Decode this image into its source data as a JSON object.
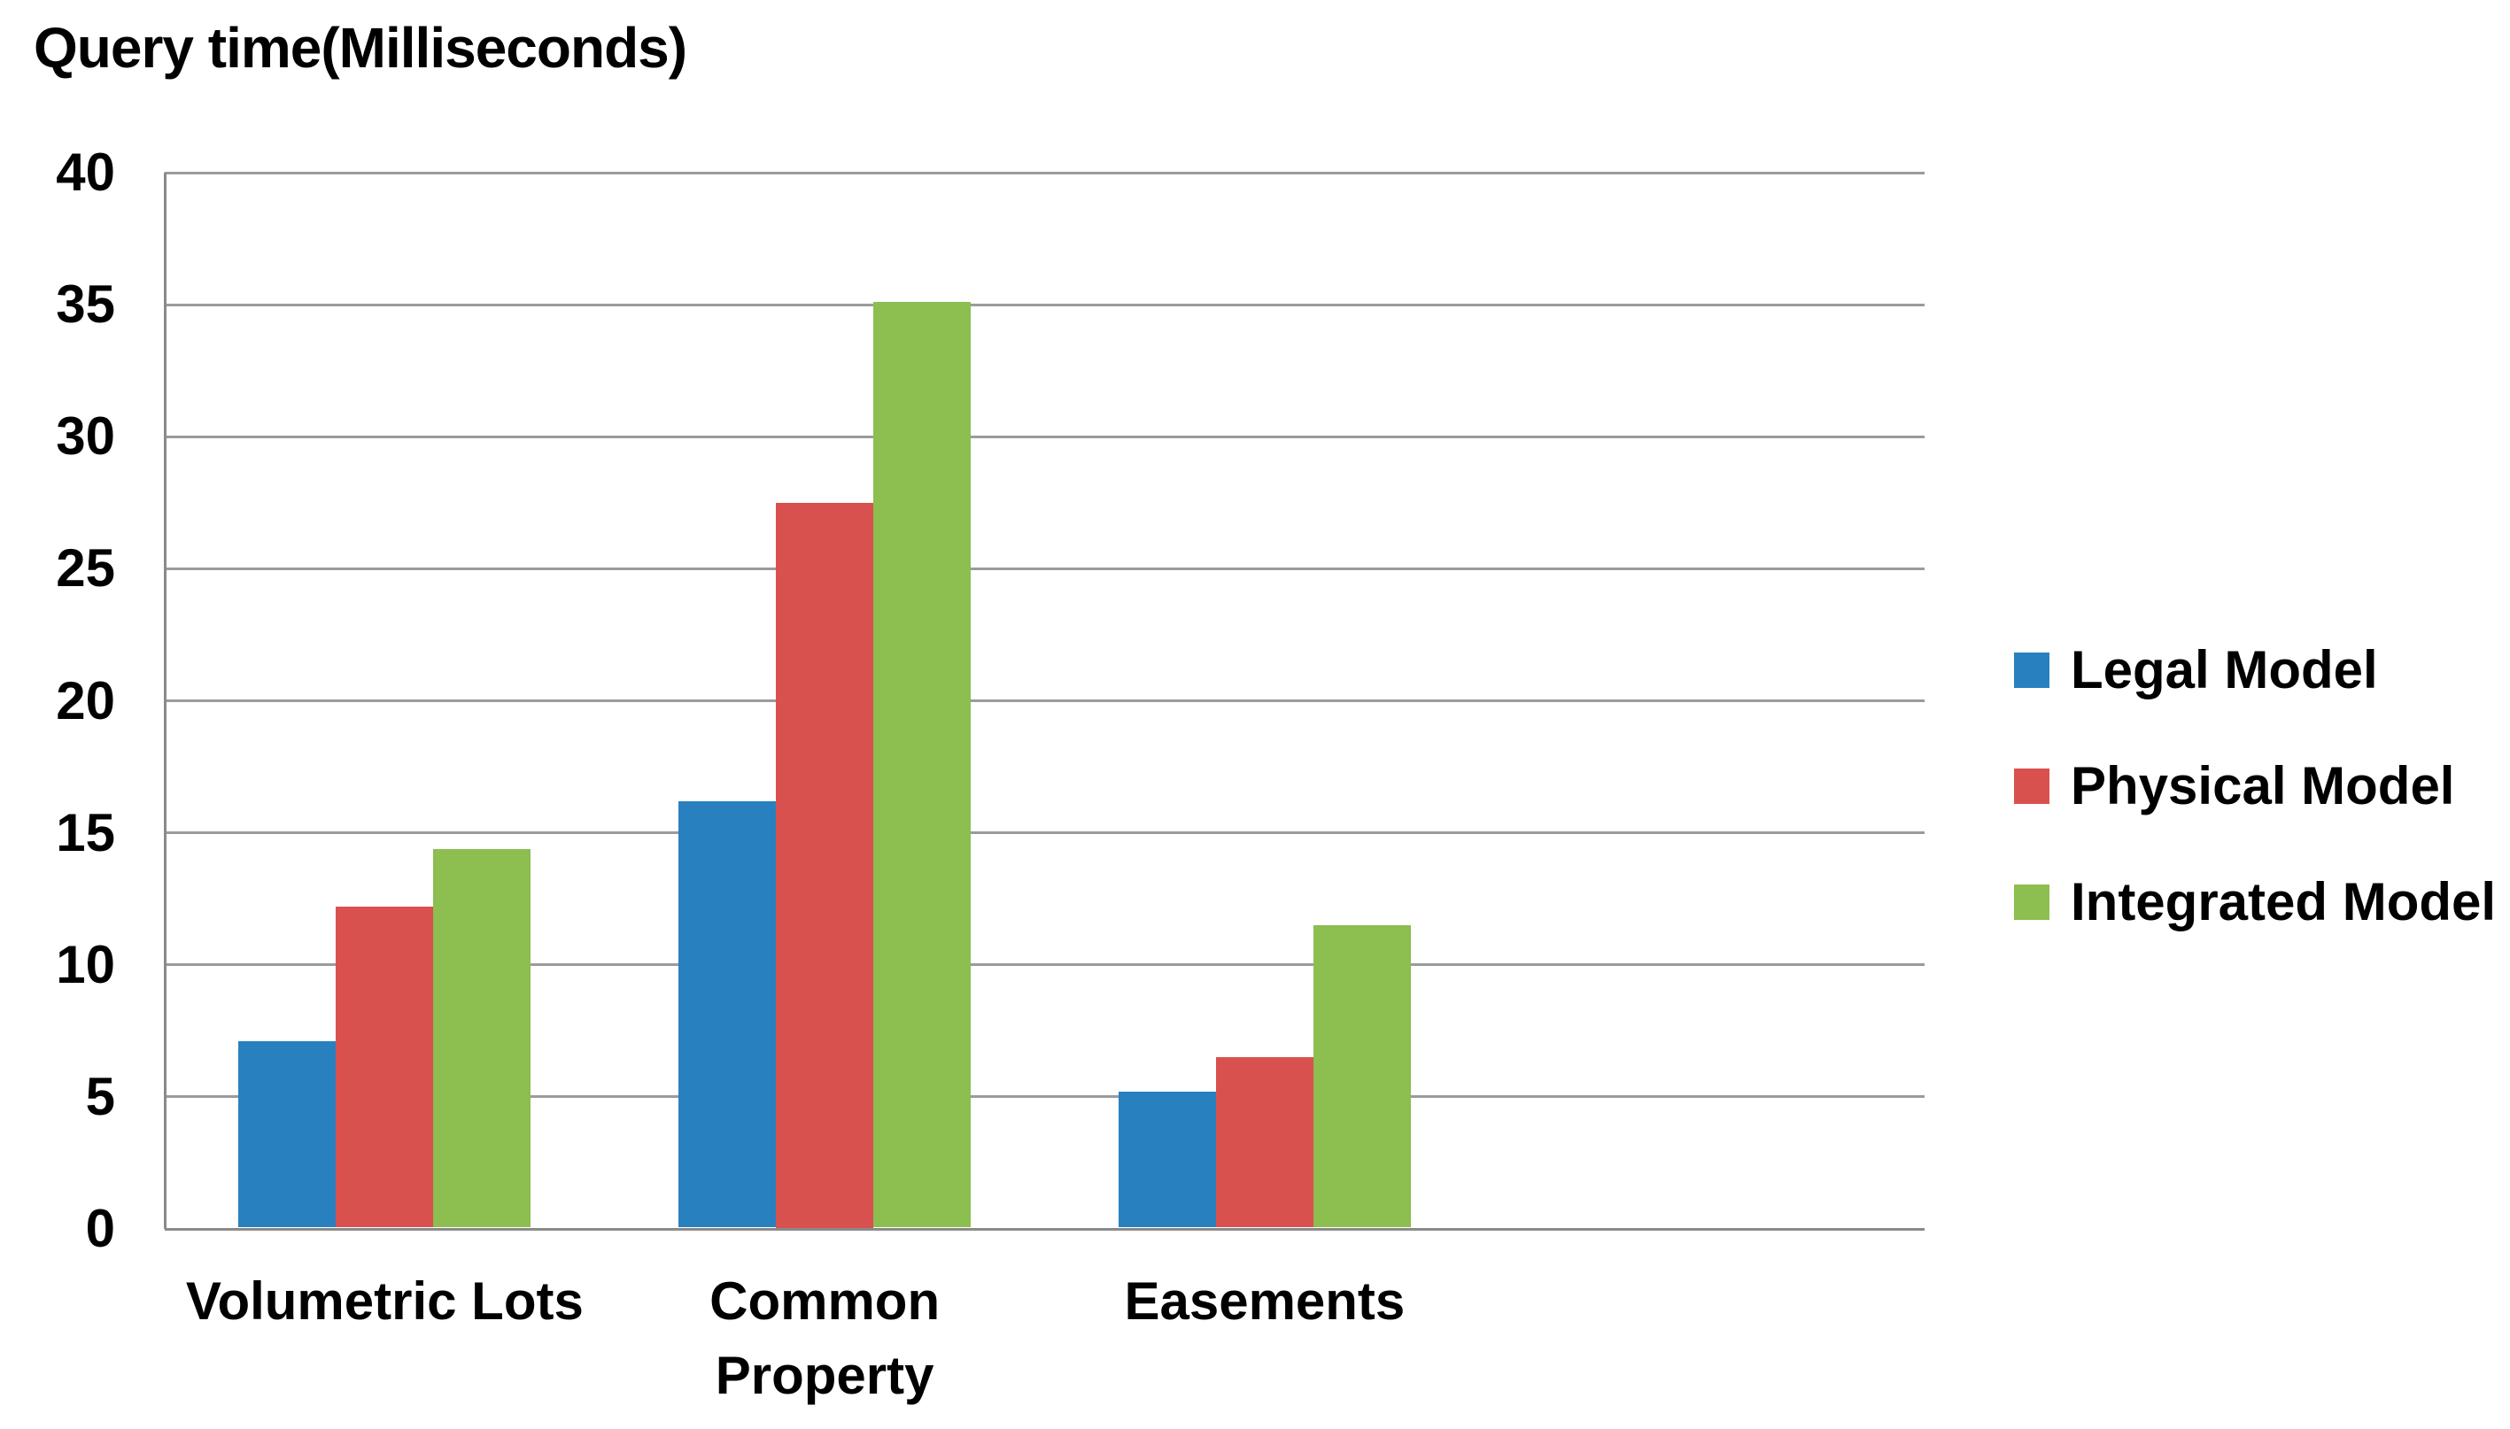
{
  "title": "Query time(Milliseconds)",
  "chart_data": {
    "type": "bar",
    "title": "Query time(Milliseconds)",
    "categories": [
      "Volumetric Lots",
      "Common\nProperty",
      "Easements"
    ],
    "series": [
      {
        "name": "Legal Model",
        "color": "#2881BE",
        "values": [
          7.1,
          16.2,
          5.2
        ]
      },
      {
        "name": "Physical Model",
        "color": "#D9514E",
        "values": [
          12.2,
          27.5,
          6.5
        ]
      },
      {
        "name": "Integrated Model",
        "color": "#8CBE50",
        "values": [
          14.4,
          35.1,
          11.5
        ]
      }
    ],
    "xlabel": "",
    "ylabel": "",
    "ylim": [
      0,
      40
    ],
    "yticks": [
      0,
      5,
      10,
      15,
      20,
      25,
      30,
      35,
      40
    ],
    "grid": true,
    "legend_position": "right",
    "layout": {
      "category_slots": 4,
      "bars_touch": true
    }
  },
  "colors": {
    "background": "#FFFFFF",
    "gridline": "#9B9B9B",
    "axis": "#8A8A8A",
    "text": "#000000"
  }
}
